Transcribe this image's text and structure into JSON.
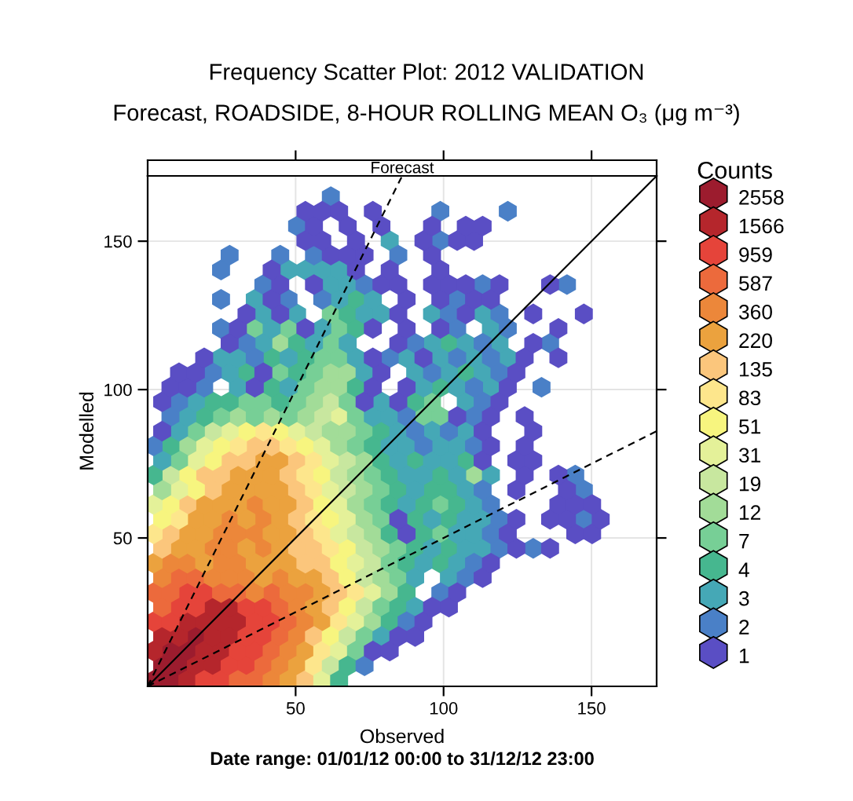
{
  "chart_data": {
    "type": "scatter",
    "title": "Frequency Scatter Plot: 2012 VALIDATION",
    "subtitle": "Forecast, ROADSIDE, 8-HOUR ROLLING MEAN O₃ (μg m⁻³)",
    "xlabel": "Observed",
    "ylabel": "Modelled",
    "legend_title": "Counts",
    "annotations": [
      "Forecast",
      "Date range: 01/01/12 00:00 to 31/12/12 23:00"
    ],
    "xlim": [
      0,
      172
    ],
    "ylim": [
      0,
      172
    ],
    "xticks": [
      50,
      100,
      150
    ],
    "yticks": [
      50,
      100,
      150
    ],
    "grid": true,
    "legend": "right",
    "series": [
      {
        "name": "2558",
        "color": "#9c1c2e",
        "x": [
          2,
          7.7,
          4.9,
          10.6,
          7.7,
          13.4,
          16.3
        ],
        "values": [
          2,
          2,
          6.9,
          6.9,
          11.9,
          11.9,
          16.8
        ]
      },
      {
        "name": "1566",
        "color": "#b5262c",
        "x": [
          13.4,
          16.3,
          22,
          2,
          19.1,
          24.8,
          4.9,
          10.6,
          22,
          27.7,
          13.4,
          19.1,
          24.8,
          30.5,
          22,
          27.7
        ],
        "values": [
          2,
          6.9,
          6.9,
          11.9,
          11.9,
          11.9,
          16.8,
          16.8,
          16.8,
          16.8,
          21.8,
          21.8,
          21.8,
          21.8,
          26.7,
          26.7
        ]
      },
      {
        "name": "959",
        "color": "#e5443a",
        "x": [
          19.1,
          24.8,
          27.7,
          33.4,
          30.5,
          36.2,
          33.4,
          39.1,
          2,
          7.7,
          36.2,
          41.9,
          10.6,
          16.3,
          33.4,
          39.1,
          13.4,
          19.1
        ],
        "values": [
          2,
          2,
          6.9,
          6.9,
          11.9,
          11.9,
          16.8,
          16.8,
          21.8,
          21.8,
          21.8,
          21.8,
          26.7,
          26.7,
          26.7,
          26.7,
          31.6,
          31.6
        ]
      },
      {
        "name": "587",
        "color": "#ec6a3c",
        "x": [
          30.5,
          36.2,
          39.1,
          41.9,
          44.8,
          47.6,
          4.9,
          44.8,
          2,
          7.7,
          24.8,
          30.5,
          41.9,
          10.6,
          16.3
        ],
        "values": [
          2,
          2,
          6.9,
          11.9,
          16.8,
          21.8,
          26.7,
          26.7,
          31.6,
          31.6,
          31.6,
          31.6,
          31.6,
          36.6,
          36.6
        ]
      },
      {
        "name": "360",
        "color": "#ec873a",
        "x": [
          41.9,
          44.8,
          47.6,
          50.5,
          53.3,
          50.5,
          36.2,
          47.6,
          53.3,
          4.9,
          22,
          27.7,
          33.4,
          44.8,
          7.7,
          13.4,
          24.8,
          30.5,
          22,
          27.7,
          39.1,
          24.8,
          30.5,
          36.2,
          27.7,
          39.1,
          36.2
        ],
        "values": [
          2,
          6.9,
          11.9,
          16.8,
          21.8,
          26.7,
          31.6,
          31.6,
          31.6,
          36.6,
          36.6,
          36.6,
          36.6,
          36.6,
          41.5,
          41.5,
          41.5,
          41.5,
          46.5,
          46.5,
          46.5,
          51.4,
          51.4,
          51.4,
          56.3,
          56.3,
          61.3
        ]
      },
      {
        "name": "220",
        "color": "#eba23e",
        "x": [
          47.6,
          50.5,
          53.3,
          59,
          56.2,
          59,
          39.1,
          50.5,
          56.2,
          2,
          19.1,
          36.2,
          41.9,
          47.6,
          10.6,
          16.3,
          33.4,
          44.8,
          13.4,
          19.1,
          41.9,
          47.6,
          16.3,
          22,
          33.4,
          44.8,
          19.1,
          24.8,
          30.5,
          41.9,
          47.6,
          27.7,
          33.4,
          39.1,
          44.8,
          30.5,
          36.2,
          41.9,
          39.1,
          44.8
        ],
        "values": [
          2,
          6.9,
          11.9,
          21.8,
          26.7,
          31.6,
          36.6,
          36.6,
          36.6,
          41.5,
          41.5,
          41.5,
          41.5,
          41.5,
          46.5,
          46.5,
          46.5,
          46.5,
          51.4,
          51.4,
          51.4,
          51.4,
          56.3,
          56.3,
          56.3,
          56.3,
          61.3,
          61.3,
          61.3,
          61.3,
          61.3,
          66.2,
          66.2,
          66.2,
          66.2,
          71.2,
          71.2,
          71.2,
          76.1,
          76.1
        ]
      },
      {
        "name": "135",
        "color": "#fbc67c",
        "x": [
          53.3,
          56.2,
          61.9,
          64.7,
          61.9,
          53.3,
          59,
          4.9,
          50.5,
          56.2,
          7.7,
          53.3,
          50.5,
          13.4,
          53.3,
          22,
          50.5,
          19.1,
          24.8,
          47.6,
          27.7,
          33.4,
          50.5,
          36.2,
          41.9
        ],
        "values": [
          2,
          16.8,
          26.7,
          31.6,
          36.6,
          41.5,
          41.5,
          46.5,
          46.5,
          46.5,
          51.4,
          51.4,
          56.3,
          61.3,
          61.3,
          66.2,
          66.2,
          71.2,
          71.2,
          71.2,
          76.1,
          76.1,
          76.1,
          81,
          81
        ]
      },
      {
        "name": "83",
        "color": "#fde68c",
        "x": [
          56.2,
          59,
          64.7,
          70.4,
          61.9,
          2,
          59,
          10.6,
          56.2,
          56.2,
          53.3,
          56.2,
          30.5,
          47.6,
          39.1
        ],
        "values": [
          6.9,
          11.9,
          21.8,
          31.6,
          46.5,
          51.4,
          51.4,
          56.3,
          56.3,
          66.2,
          71.2,
          76.1,
          81,
          81,
          86
        ]
      },
      {
        "name": "51",
        "color": "#f7f57f",
        "x": [
          61.9,
          67.6,
          67.6,
          64.7,
          67.6,
          4.9,
          61.9,
          7.7,
          59,
          16.3,
          13.4,
          59,
          22,
          24.8,
          53.3,
          33.4,
          44.8
        ],
        "values": [
          16.8,
          26.7,
          36.6,
          41.5,
          46.5,
          56.3,
          56.3,
          61.3,
          61.3,
          66.2,
          71.2,
          71.2,
          76.1,
          81,
          81,
          86,
          86
        ]
      },
      {
        "name": "31",
        "color": "#e4f199",
        "x": [
          59,
          64.7,
          70.4,
          76.1,
          70.4,
          64.7,
          67.6,
          2,
          64.7,
          10.6,
          61.9,
          16.3,
          61.9,
          19.1,
          59,
          27.7,
          50.5,
          64.7
        ],
        "values": [
          2,
          11.9,
          21.8,
          31.6,
          41.5,
          51.4,
          56.3,
          61.3,
          61.3,
          66.2,
          66.2,
          76.1,
          76.1,
          81,
          81,
          86,
          86,
          90.9
        ]
      },
      {
        "name": "19",
        "color": "#c8e79f",
        "x": [
          61.9,
          67.6,
          73.3,
          73.3,
          76.1,
          73.3,
          70.4,
          67.6,
          7.7,
          64.7,
          67.6,
          22,
          56.2,
          59,
          61.9
        ],
        "values": [
          6.9,
          16.8,
          26.7,
          36.6,
          41.5,
          46.5,
          51.4,
          66.2,
          71.2,
          71.2,
          76.1,
          86,
          86,
          90.9,
          95.9
        ]
      },
      {
        "name": "12",
        "color": "#a2dc98",
        "x": [
          76.1,
          81.8,
          79,
          79,
          76.1,
          73.3,
          70.4,
          4.9,
          73.3,
          70.4,
          110.3,
          73.3,
          13.4,
          64.7,
          61.9,
          67.6,
          30.5,
          41.9,
          53.3,
          56.2,
          59,
          64.7,
          61.9,
          67.6,
          44.8
        ],
        "values": [
          21.8,
          31.6,
          36.6,
          46.5,
          51.4,
          56.3,
          61.3,
          66.2,
          66.2,
          71.2,
          71.2,
          76.1,
          81,
          81,
          86,
          86,
          90.9,
          90.9,
          90.9,
          95.9,
          100.8,
          100.8,
          105.7,
          105.7,
          115.6
        ]
      },
      {
        "name": "7",
        "color": "#77cf96",
        "x": [
          70.4,
          73.3,
          79,
          84.7,
          81.8,
          84.7,
          98.9,
          79,
          76.1,
          98.9,
          79,
          76.1,
          10.6,
          70.4,
          16.3,
          73.3,
          24.8,
          36.2,
          47.6,
          70.4,
          93.2,
          98.9,
          33.4,
          39.1,
          50.5,
          67.6,
          96.1,
          53.3,
          44.8,
          56.2,
          59,
          64.7,
          61.9,
          36.2,
          47.6,
          64.7,
          61.9
        ],
        "values": [
          11.9,
          16.8,
          26.7,
          36.6,
          41.5,
          46.5,
          51.4,
          56.3,
          61.3,
          61.3,
          66.2,
          71.2,
          76.1,
          81,
          86,
          86,
          90.9,
          90.9,
          90.9,
          90.9,
          90.9,
          90.9,
          95.9,
          95.9,
          95.9,
          95.9,
          95.9,
          100.8,
          105.7,
          105.7,
          110.7,
          110.7,
          115.6,
          120.6,
          120.6,
          120.6,
          125.5
        ]
      },
      {
        "name": "4",
        "color": "#46b78f",
        "x": [
          64.7,
          67.6,
          81.8,
          84.7,
          87.5,
          87.5,
          98.9,
          90.4,
          101.8,
          81.8,
          93.2,
          90.4,
          101.8,
          81.8,
          93.2,
          104.6,
          84.7,
          96.1,
          101.8,
          2,
          81.8,
          98.9,
          79,
          90.4,
          107.5,
          7.7,
          76.1,
          79,
          19.1,
          22,
          27.7,
          44.8,
          90.4,
          41.9,
          70.4,
          98.9,
          33.4,
          50.5,
          107.5,
          41.9,
          53.3,
          50.5,
          101.8,
          70.4,
          67.6,
          70.4
        ],
        "values": [
          2,
          6.9,
          21.8,
          26.7,
          31.6,
          41.5,
          41.5,
          46.5,
          46.5,
          51.4,
          51.4,
          56.3,
          56.3,
          61.3,
          61.3,
          61.3,
          66.2,
          66.2,
          66.2,
          71.2,
          71.2,
          71.2,
          76.1,
          76.1,
          76.1,
          81,
          81,
          86,
          90.9,
          95.9,
          95.9,
          95.9,
          95.9,
          100.8,
          100.8,
          100.8,
          105.7,
          105.7,
          105.7,
          110.7,
          110.7,
          115.6,
          115.6,
          120.6,
          125.5,
          130.4
        ]
      },
      {
        "name": "3",
        "color": "#45a8b6",
        "x": [
          79,
          90.4,
          90.4,
          101.8,
          93.2,
          104.6,
          96.1,
          107.5,
          113.2,
          104.6,
          110.3,
          96.1,
          107.5,
          113.2,
          87.5,
          110.3,
          90.4,
          107.5,
          87.5,
          93.2,
          104.6,
          116,
          4.9,
          84.7,
          96.1,
          101.8,
          81.8,
          87.5,
          98.9,
          104.6,
          10.6,
          84.7,
          96.1,
          107.5,
          13.4,
          76.1,
          81.8,
          16.3,
          79,
          107.5,
          30.5,
          47.6,
          93.2,
          104.6,
          116,
          27.7,
          73.3,
          90.4,
          101.8,
          113.2,
          24.8,
          30.5,
          47.6,
          70.4,
          87.5,
          98.9,
          110.3,
          121.7,
          39.1,
          56.2,
          67.6,
          96.1,
          107.5,
          118.9,
          41.9,
          59,
          116,
          39.1,
          50.5,
          73.3,
          79,
          96.1,
          113.2,
          36.2,
          64.7,
          76.1,
          61.9,
          67.6,
          47.6,
          53.3,
          59,
          64.7,
          81.8
        ],
        "values": [
          16.8,
          26.7,
          36.6,
          36.6,
          41.5,
          41.5,
          46.5,
          46.5,
          46.5,
          51.4,
          51.4,
          56.3,
          56.3,
          56.3,
          61.3,
          61.3,
          66.2,
          66.2,
          71.2,
          71.2,
          71.2,
          71.2,
          76.1,
          76.1,
          76.1,
          76.1,
          81,
          81,
          81,
          81,
          86,
          86,
          86,
          86,
          90.9,
          90.9,
          90.9,
          95.9,
          95.9,
          95.9,
          100.8,
          100.8,
          100.8,
          100.8,
          100.8,
          105.7,
          105.7,
          105.7,
          105.7,
          105.7,
          110.7,
          110.7,
          110.7,
          110.7,
          110.7,
          110.7,
          110.7,
          110.7,
          115.6,
          115.6,
          115.6,
          115.6,
          115.6,
          115.6,
          120.6,
          120.6,
          120.6,
          125.5,
          125.5,
          125.5,
          125.5,
          125.5,
          125.5,
          130.4,
          130.4,
          130.4,
          135.4,
          135.4,
          140.3,
          140.3,
          140.3,
          140.3,
          150.2
        ]
      },
      {
        "name": "2",
        "color": "#4a80c7",
        "x": [
          73.3,
          87.5,
          98.9,
          107.5,
          110.3,
          118.9,
          130.3,
          116,
          118.9,
          147.4,
          116,
          113.2,
          147.4,
          144.5,
          2,
          93.2,
          110.3,
          90.4,
          101.8,
          7.7,
          87.5,
          110.3,
          10.6,
          113.2,
          19.1,
          110.3,
          133.1,
          22,
          96.1,
          118.9,
          36.2,
          81.8,
          104.6,
          116,
          33.4,
          90.4,
          113.2,
          136,
          24.8,
          104.6,
          121.7,
          101.8,
          118.9,
          24.8,
          47.6,
          59,
          104.6,
          39.1,
          73.3,
          113.2,
          141.7,
          24.8,
          27.7,
          44.8,
          56.2,
          84.7,
          98.9,
          50.5,
          98.9,
          121.7,
          61.9
        ],
        "values": [
          6.9,
          21.8,
          31.6,
          36.6,
          41.5,
          46.5,
          46.5,
          51.4,
          56.3,
          56.3,
          61.3,
          66.2,
          66.2,
          71.2,
          81,
          81,
          81,
          86,
          86,
          90.9,
          90.9,
          90.9,
          95.9,
          95.9,
          100.8,
          100.8,
          100.8,
          105.7,
          105.7,
          105.7,
          110.7,
          110.7,
          110.7,
          110.7,
          115.6,
          115.6,
          115.6,
          115.6,
          120.6,
          120.6,
          120.6,
          125.5,
          125.5,
          130.4,
          130.4,
          130.4,
          130.4,
          135.4,
          135.4,
          135.4,
          135.4,
          140.3,
          145.3,
          145.3,
          145.3,
          145.3,
          150.2,
          155.1,
          160.1,
          160.1,
          165
        ]
      },
      {
        "name": "1",
        "color": "#5a4ec4",
        "x": [
          76.1,
          81.8,
          84.7,
          90.4,
          93.2,
          96.1,
          101.8,
          104.6,
          113.2,
          116,
          124.6,
          136,
          87.5,
          121.7,
          144.5,
          150.2,
          84.7,
          124.6,
          136,
          141.7,
          153.1,
          138.8,
          144.5,
          150.2,
          124.6,
          141.7,
          127.4,
          138.8,
          113.2,
          124.6,
          130.3,
          116,
          127.4,
          4.9,
          113.2,
          130.3,
          104.6,
          116,
          127.4,
          4.9,
          73.3,
          84.7,
          118.9,
          7.7,
          13.4,
          36.2,
          76.1,
          87.5,
          121.7,
          10.6,
          16.3,
          39.1,
          79,
          124.6,
          19.1,
          76.1,
          93.2,
          127.4,
          138.8,
          27.7,
          84.7,
          130.3,
          30.5,
          53.3,
          76.1,
          87.5,
          98.9,
          138.8,
          33.4,
          44.8,
          84.7,
          107.5,
          130.3,
          147.4,
          41.9,
          87.5,
          98.9,
          110.3,
          116,
          44.8,
          56.2,
          79,
          84.7,
          96.1,
          101.8,
          107.5,
          118.9,
          136,
          41.9,
          70.4,
          81.8,
          98.9,
          61.9,
          67.6,
          73.3,
          96.1,
          53.3,
          59,
          70.4,
          93.2,
          104.6,
          110.3,
          56.2,
          67.6,
          79,
          96.1,
          107.5,
          113.2,
          53.3,
          59,
          64.7,
          76.1
        ],
        "values": [
          11.9,
          11.9,
          16.8,
          16.8,
          21.8,
          26.7,
          26.7,
          31.6,
          36.6,
          41.5,
          46.5,
          46.5,
          51.4,
          51.4,
          51.4,
          51.4,
          56.3,
          56.3,
          56.3,
          56.3,
          56.3,
          61.3,
          61.3,
          61.3,
          66.2,
          66.2,
          71.2,
          71.2,
          76.1,
          76.1,
          76.1,
          81,
          81,
          86,
          86,
          86,
          90.9,
          90.9,
          90.9,
          95.9,
          95.9,
          95.9,
          95.9,
          100.8,
          100.8,
          100.8,
          100.8,
          100.8,
          100.8,
          105.7,
          105.7,
          105.7,
          105.7,
          105.7,
          110.7,
          110.7,
          110.7,
          110.7,
          110.7,
          115.6,
          115.6,
          115.6,
          120.6,
          120.6,
          120.6,
          120.6,
          120.6,
          120.6,
          125.5,
          125.5,
          125.5,
          125.5,
          125.5,
          125.5,
          130.4,
          130.4,
          130.4,
          130.4,
          130.4,
          135.4,
          135.4,
          135.4,
          135.4,
          135.4,
          135.4,
          135.4,
          135.4,
          135.4,
          140.3,
          140.3,
          140.3,
          140.3,
          145.3,
          145.3,
          145.3,
          145.3,
          150.2,
          150.2,
          150.2,
          150.2,
          150.2,
          150.2,
          155.1,
          155.1,
          155.1,
          155.1,
          155.1,
          155.1,
          160.1,
          160.1,
          160.1,
          160.1
        ]
      },
      {
        "type": "line",
        "color": "#000000",
        "line_style": "solid",
        "x": [
          0,
          172
        ],
        "values": [
          0,
          172
        ]
      },
      {
        "type": "line",
        "color": "#000000",
        "line_style": "dashed",
        "x": [
          0,
          86
        ],
        "values": [
          0,
          172
        ]
      },
      {
        "type": "line",
        "color": "#000000",
        "line_style": "dashed",
        "x": [
          0,
          172
        ],
        "values": [
          0,
          86
        ]
      }
    ]
  }
}
